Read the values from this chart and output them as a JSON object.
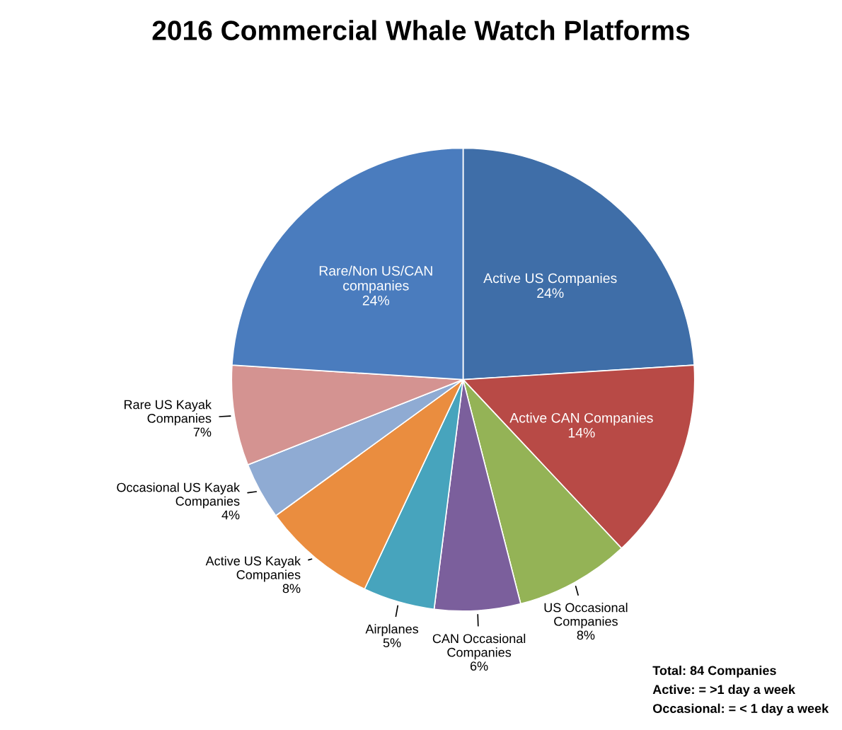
{
  "chart_data": {
    "type": "pie",
    "title": "2016 Commercial Whale Watch Platforms",
    "categories": [
      "Active US Companies",
      "Active CAN Companies",
      "US Occasional\nCompanies",
      "CAN Occasional\nCompanies",
      "Airplanes",
      "Active US Kayak\nCompanies",
      "Occasional US Kayak\nCompanies",
      "Rare US Kayak\nCompanies",
      "Rare/Non US/CAN\ncompanies"
    ],
    "values": [
      24,
      14,
      8,
      6,
      5,
      8,
      4,
      7,
      24
    ],
    "value_labels": [
      "24%",
      "14%",
      "8%",
      "6%",
      "5%",
      "8%",
      "4%",
      "7%",
      "24%"
    ],
    "colors": [
      "#3f6ea8",
      "#b84a46",
      "#94b356",
      "#7b5f9c",
      "#47a4bd",
      "#ea8d3f",
      "#8fabd3",
      "#d49391",
      "#4a7cbe"
    ],
    "annotations": [
      "Total: 84 Companies",
      "Active: = >1 day a week",
      "Occasional: = < 1 day a week"
    ],
    "legend": false
  }
}
